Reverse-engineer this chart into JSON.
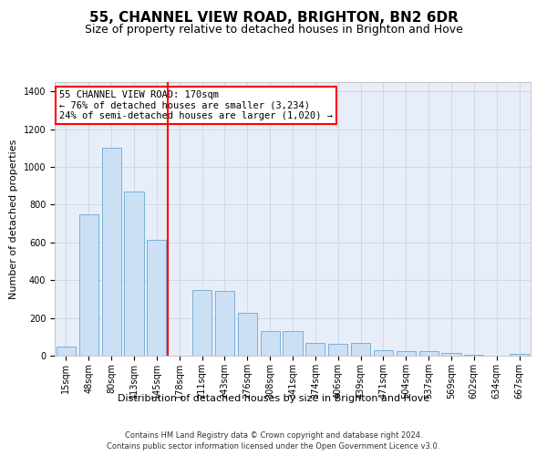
{
  "title": "55, CHANNEL VIEW ROAD, BRIGHTON, BN2 6DR",
  "subtitle": "Size of property relative to detached houses in Brighton and Hove",
  "xlabel": "Distribution of detached houses by size in Brighton and Hove",
  "ylabel": "Number of detached properties",
  "footer1": "Contains HM Land Registry data © Crown copyright and database right 2024.",
  "footer2": "Contains public sector information licensed under the Open Government Licence v3.0.",
  "annotation_line1": "55 CHANNEL VIEW ROAD: 170sqm",
  "annotation_line2": "← 76% of detached houses are smaller (3,234)",
  "annotation_line3": "24% of semi-detached houses are larger (1,020) →",
  "categories": [
    "15sqm",
    "48sqm",
    "80sqm",
    "113sqm",
    "145sqm",
    "178sqm",
    "211sqm",
    "243sqm",
    "276sqm",
    "308sqm",
    "341sqm",
    "374sqm",
    "406sqm",
    "439sqm",
    "471sqm",
    "504sqm",
    "537sqm",
    "569sqm",
    "602sqm",
    "634sqm",
    "667sqm"
  ],
  "bar_values": [
    50,
    750,
    1100,
    870,
    615,
    0,
    350,
    345,
    225,
    130,
    130,
    70,
    65,
    70,
    30,
    25,
    25,
    15,
    5,
    0,
    10
  ],
  "bar_color": "#cce0f5",
  "bar_edge_color": "#7ab0d8",
  "vline_color": "red",
  "vline_x": 5,
  "ylim": [
    0,
    1450
  ],
  "yticks": [
    0,
    200,
    400,
    600,
    800,
    1000,
    1200,
    1400
  ],
  "grid_color": "#c8d4e8",
  "background_color": "#e8eef8",
  "title_fontsize": 11,
  "subtitle_fontsize": 9,
  "ylabel_fontsize": 8,
  "xlabel_fontsize": 8,
  "tick_fontsize": 7,
  "annotation_fontsize": 7.5,
  "footer_fontsize": 6
}
